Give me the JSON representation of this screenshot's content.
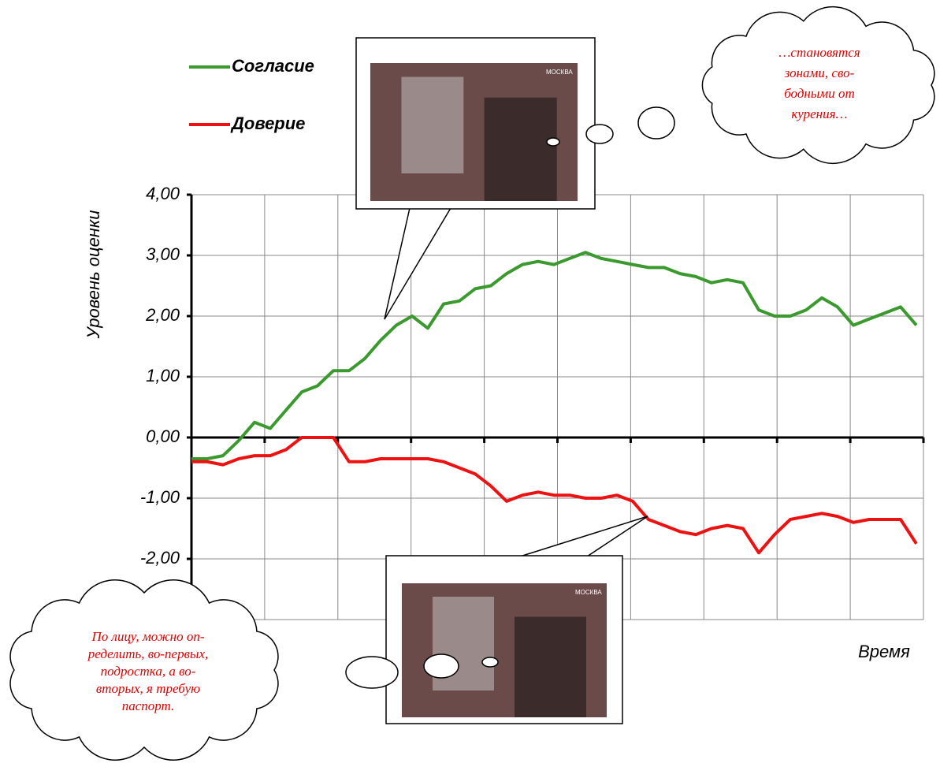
{
  "chart_data": {
    "type": "line",
    "y_label": "Уровень оценки",
    "x_label": "Время",
    "ylim": [
      -3,
      4
    ],
    "yticks": [
      {
        "value": 4,
        "label": "4,00"
      },
      {
        "value": 3,
        "label": "3,00"
      },
      {
        "value": 2,
        "label": "2,00"
      },
      {
        "value": 1,
        "label": "1,00"
      },
      {
        "value": 0,
        "label": "0,00"
      },
      {
        "value": -1,
        "label": "-1,00"
      },
      {
        "value": -2,
        "label": "-2,00"
      }
    ],
    "grid": true,
    "series": [
      {
        "name": "Согласие",
        "color": "#3a9a2e",
        "values": [
          -0.35,
          -0.35,
          -0.3,
          -0.05,
          0.25,
          0.15,
          0.45,
          0.75,
          0.85,
          1.1,
          1.1,
          1.3,
          1.6,
          1.85,
          2.0,
          1.8,
          2.2,
          2.25,
          2.45,
          2.5,
          2.7,
          2.85,
          2.9,
          2.85,
          2.95,
          3.05,
          2.95,
          2.9,
          2.85,
          2.8,
          2.8,
          2.7,
          2.65,
          2.55,
          2.6,
          2.55,
          2.1,
          2.0,
          2.0,
          2.1,
          2.3,
          2.15,
          1.85,
          1.95,
          2.05,
          2.15,
          1.85
        ]
      },
      {
        "name": "Доверие",
        "color": "#ee1111",
        "values": [
          -0.4,
          -0.4,
          -0.45,
          -0.35,
          -0.3,
          -0.3,
          -0.2,
          0.0,
          0.0,
          0.0,
          -0.4,
          -0.4,
          -0.35,
          -0.35,
          -0.35,
          -0.35,
          -0.4,
          -0.5,
          -0.6,
          -0.8,
          -1.05,
          -0.95,
          -0.9,
          -0.95,
          -0.95,
          -1.0,
          -1.0,
          -0.95,
          -1.05,
          -1.35,
          -1.45,
          -1.55,
          -1.6,
          -1.5,
          -1.45,
          -1.5,
          -1.9,
          -1.6,
          -1.35,
          -1.3,
          -1.25,
          -1.3,
          -1.4,
          -1.35,
          -1.35,
          -1.35,
          -1.75
        ]
      }
    ],
    "annotations": [
      [
        "…становятся",
        "зонами, сво-",
        "бодными от",
        "курения…"
      ],
      [
        "По лицу, можно оп-",
        "ределить, во-первых,",
        "подростка, а во-",
        "вторых, я требую",
        "паспорт."
      ]
    ],
    "photo_captions": [
      "МОСКВА",
      "МОСКВА"
    ]
  }
}
